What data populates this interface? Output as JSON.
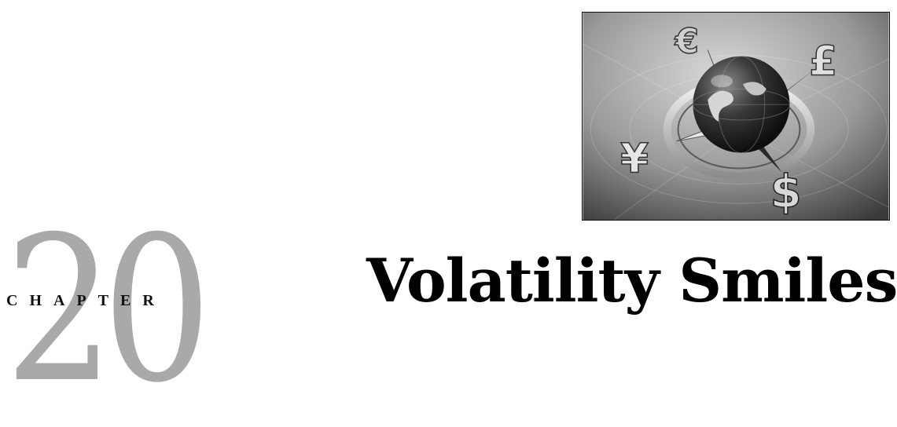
{
  "chapter": {
    "label": "CHAPTER",
    "number": "20",
    "title": "Volatility Smiles"
  },
  "image": {
    "currency_symbols": [
      "€",
      "£",
      "¥",
      "$"
    ]
  }
}
